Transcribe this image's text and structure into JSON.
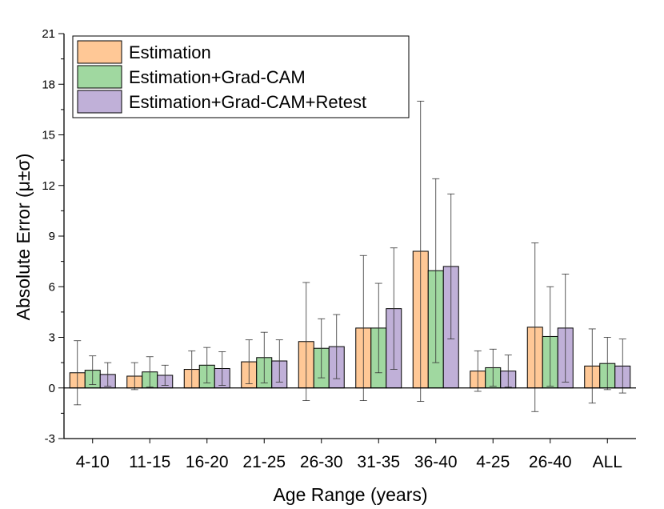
{
  "chart_data": {
    "type": "bar",
    "xlabel": "Age Range (years)",
    "ylabel": "Absolute Error (μ±σ)",
    "ylim": [
      -3,
      21
    ],
    "yticks": [
      -3,
      0,
      3,
      6,
      9,
      12,
      15,
      18,
      21
    ],
    "grid": false,
    "legend_position": "top-left",
    "categories": [
      "4-10",
      "11-15",
      "16-20",
      "21-25",
      "26-30",
      "31-35",
      "36-40",
      "4-25",
      "26-40",
      "ALL"
    ],
    "series": [
      {
        "name": "Estimation",
        "color": "#FFC896",
        "values": [
          0.9,
          0.7,
          1.1,
          1.55,
          2.75,
          3.55,
          8.1,
          1.0,
          3.6,
          1.3
        ],
        "errors": [
          1.9,
          0.8,
          1.1,
          1.3,
          3.5,
          4.3,
          8.9,
          1.2,
          5.0,
          2.2
        ]
      },
      {
        "name": "Estimation+Grad-CAM",
        "color": "#A0D8A0",
        "values": [
          1.05,
          0.95,
          1.35,
          1.8,
          2.35,
          3.55,
          6.95,
          1.2,
          3.05,
          1.45
        ],
        "errors": [
          0.85,
          0.9,
          1.05,
          1.5,
          1.75,
          2.65,
          5.45,
          1.1,
          2.95,
          1.55
        ]
      },
      {
        "name": "Estimation+Grad-CAM+Retest",
        "color": "#C0B0D8",
        "values": [
          0.8,
          0.75,
          1.15,
          1.6,
          2.45,
          4.7,
          7.2,
          1.0,
          3.55,
          1.3
        ],
        "errors": [
          0.7,
          0.6,
          1.0,
          1.25,
          1.9,
          3.6,
          4.3,
          0.95,
          3.2,
          1.6
        ]
      }
    ]
  }
}
